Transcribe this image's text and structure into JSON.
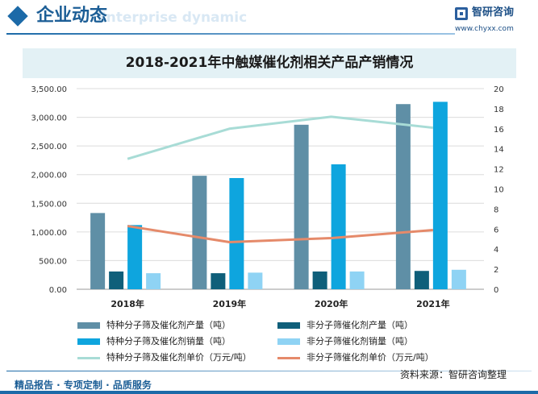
{
  "header": {
    "title": "企业动态",
    "subtitle": "Enterprise dynamic",
    "brand_name": "智研咨询",
    "brand_url": "www.chyxx.com"
  },
  "footer": {
    "tagline": "精品报告 · 专项定制 · 品质服务",
    "source": "资料来源：智研咨询整理"
  },
  "colors": {
    "accent": "#1c6aa8",
    "series_bar_1": "#5f8fa6",
    "series_bar_2": "#0f5f7a",
    "series_bar_3": "#0ea5de",
    "series_bar_4": "#8fd3f4",
    "series_line_1": "#a8dcd6",
    "series_line_2": "#e58a6a"
  },
  "chart_data": {
    "type": "bar",
    "title": "2018-2021年中触媒催化剂相关产品产销情况",
    "categories": [
      "2018年",
      "2019年",
      "2020年",
      "2021年"
    ],
    "y_left": {
      "ylim": [
        0,
        3500
      ],
      "ticks": [
        "0.00",
        "500.00",
        "1,000.00",
        "1,500.00",
        "2,000.00",
        "2,500.00",
        "3,000.00",
        "3,500.00"
      ]
    },
    "y_right": {
      "ylim": [
        0,
        20
      ],
      "ticks": [
        "0",
        "2",
        "4",
        "6",
        "8",
        "10",
        "12",
        "14",
        "16",
        "18",
        "20"
      ]
    },
    "grid": true,
    "legend_position": "bottom",
    "series": [
      {
        "name": "特种分子筛及催化剂产量（吨）",
        "kind": "bar",
        "axis": "left",
        "values": [
          1330,
          1980,
          2870,
          3230
        ]
      },
      {
        "name": "非分子筛催化剂产量（吨）",
        "kind": "bar",
        "axis": "left",
        "values": [
          310,
          280,
          310,
          320
        ]
      },
      {
        "name": "特种分子筛及催化剂销量（吨）",
        "kind": "bar",
        "axis": "left",
        "values": [
          1120,
          1940,
          2180,
          3270
        ]
      },
      {
        "name": "非分子筛催化剂销量（吨）",
        "kind": "bar",
        "axis": "left",
        "values": [
          280,
          290,
          310,
          340
        ]
      },
      {
        "name": "特种分子筛及催化剂单价（万元/吨）",
        "kind": "line",
        "axis": "right",
        "values": [
          13.0,
          16.0,
          17.2,
          16.1
        ]
      },
      {
        "name": "非分子筛催化剂单价（万元/吨）",
        "kind": "line",
        "axis": "right",
        "values": [
          6.3,
          4.7,
          5.1,
          5.9
        ]
      }
    ]
  }
}
